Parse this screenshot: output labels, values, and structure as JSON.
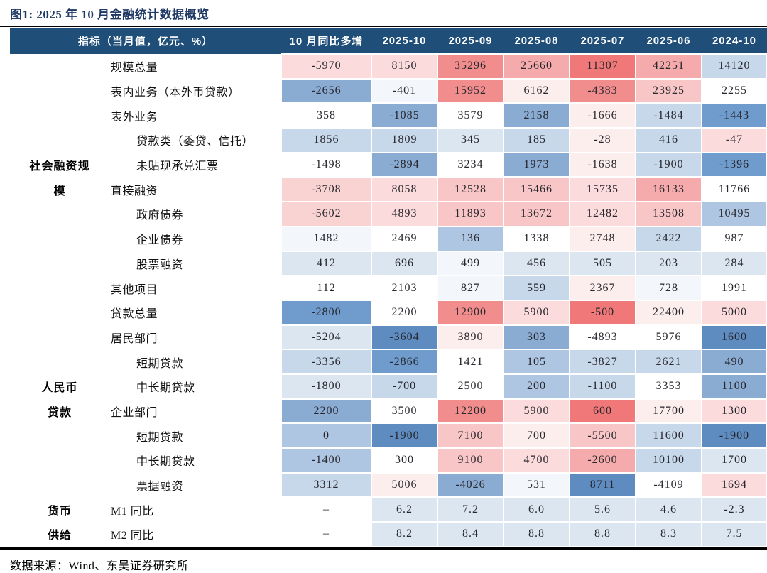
{
  "chart_data": {
    "type": "table",
    "title": "图1:  2025 年 10 月金融统计数据概览",
    "source": "数据来源：Wind、东吴证券研究所",
    "columns": [
      "指标（当月值，亿元、%）",
      "10 月同比多增",
      "2025-10",
      "2025-09",
      "2025-08",
      "2025-07",
      "2025-06",
      "2024-10"
    ],
    "rows": [
      {
        "cat": "",
        "indicator": "规模总量",
        "indent": 1,
        "cells": [
          [
            "-5970",
            "P1"
          ],
          [
            "8150",
            "P1"
          ],
          [
            "35296",
            "R2"
          ],
          [
            "25660",
            "R1"
          ],
          [
            "11307",
            "R3"
          ],
          [
            "42251",
            "R1"
          ],
          [
            "14120",
            "B1"
          ]
        ]
      },
      {
        "cat": "",
        "indicator": "表内业务（本外币贷款）",
        "indent": 1,
        "cells": [
          [
            "-2656",
            "B3"
          ],
          [
            "-401",
            "BW"
          ],
          [
            "15952",
            "R2"
          ],
          [
            "6162",
            "PW"
          ],
          [
            "-4383",
            "R2"
          ],
          [
            "23925",
            "P2"
          ],
          [
            "2255",
            "W"
          ]
        ]
      },
      {
        "cat": "",
        "indicator": "表外业务",
        "indent": 1,
        "cells": [
          [
            "358",
            "W"
          ],
          [
            "-1085",
            "B3"
          ],
          [
            "3579",
            "W"
          ],
          [
            "2158",
            "B3"
          ],
          [
            "-1666",
            "PW"
          ],
          [
            "-1484",
            "B1"
          ],
          [
            "-1443",
            "B4"
          ]
        ]
      },
      {
        "cat": "",
        "indicator": "贷款类（委贷、信托）",
        "indent": 2,
        "cells": [
          [
            "1856",
            "B1"
          ],
          [
            "1809",
            "B1"
          ],
          [
            "345",
            "B0"
          ],
          [
            "185",
            "B1"
          ],
          [
            "-28",
            "PW"
          ],
          [
            "416",
            "B1"
          ],
          [
            "-47",
            "P1"
          ]
        ]
      },
      {
        "cat": "社会融资规",
        "indicator": "未贴现承兑汇票",
        "indent": 2,
        "cells": [
          [
            "-1498",
            "W"
          ],
          [
            "-2894",
            "B3"
          ],
          [
            "3234",
            "W"
          ],
          [
            "1973",
            "B3"
          ],
          [
            "-1638",
            "PW"
          ],
          [
            "-1900",
            "B1"
          ],
          [
            "-1396",
            "B4"
          ]
        ]
      },
      {
        "cat": "模",
        "indicator": "直接融资",
        "indent": 1,
        "cells": [
          [
            "-3708",
            "P15"
          ],
          [
            "8058",
            "P1"
          ],
          [
            "12528",
            "P2"
          ],
          [
            "15466",
            "P2"
          ],
          [
            "15735",
            "P1"
          ],
          [
            "16133",
            "R1"
          ],
          [
            "11766",
            "W"
          ]
        ]
      },
      {
        "cat": "",
        "indicator": "政府债券",
        "indent": 2,
        "cells": [
          [
            "-5602",
            "P15"
          ],
          [
            "4893",
            "P1"
          ],
          [
            "11893",
            "P2"
          ],
          [
            "13672",
            "P2"
          ],
          [
            "12482",
            "P1"
          ],
          [
            "13508",
            "P2"
          ],
          [
            "10495",
            "B2"
          ]
        ]
      },
      {
        "cat": "",
        "indicator": "企业债券",
        "indent": 2,
        "cells": [
          [
            "1482",
            "BW"
          ],
          [
            "2469",
            "W"
          ],
          [
            "136",
            "B2"
          ],
          [
            "1338",
            "W"
          ],
          [
            "2748",
            "PW"
          ],
          [
            "2422",
            "B1"
          ],
          [
            "987",
            "W"
          ]
        ]
      },
      {
        "cat": "",
        "indicator": "股票融资",
        "indent": 2,
        "cells": [
          [
            "412",
            "B0"
          ],
          [
            "696",
            "B0"
          ],
          [
            "499",
            "BW"
          ],
          [
            "456",
            "B0"
          ],
          [
            "505",
            "B0"
          ],
          [
            "203",
            "B0"
          ],
          [
            "284",
            "B0"
          ]
        ]
      },
      {
        "cat": "",
        "indicator": "其他项目",
        "indent": 1,
        "cells": [
          [
            "112",
            "W"
          ],
          [
            "2103",
            "W"
          ],
          [
            "827",
            "BW"
          ],
          [
            "559",
            "B1"
          ],
          [
            "2367",
            "PW"
          ],
          [
            "728",
            "BW"
          ],
          [
            "1991",
            "W"
          ]
        ]
      },
      {
        "cat": "",
        "indicator": "贷款总量",
        "indent": 1,
        "cells": [
          [
            "-2800",
            "B4"
          ],
          [
            "2200",
            "W"
          ],
          [
            "12900",
            "R2"
          ],
          [
            "5900",
            "P1"
          ],
          [
            "-500",
            "R3"
          ],
          [
            "22400",
            "PW"
          ],
          [
            "5000",
            "P1"
          ]
        ]
      },
      {
        "cat": "",
        "indicator": "居民部门",
        "indent": 1,
        "cells": [
          [
            "-5204",
            "B0"
          ],
          [
            "-3604",
            "B5"
          ],
          [
            "3890",
            "PW"
          ],
          [
            "303",
            "B3"
          ],
          [
            "-4893",
            "W"
          ],
          [
            "5976",
            "W"
          ],
          [
            "1600",
            "B5"
          ]
        ]
      },
      {
        "cat": "",
        "indicator": "短期贷款",
        "indent": 2,
        "cells": [
          [
            "-3356",
            "B1"
          ],
          [
            "-2866",
            "B4"
          ],
          [
            "1421",
            "W"
          ],
          [
            "105",
            "B2"
          ],
          [
            "-3827",
            "B1"
          ],
          [
            "2621",
            "B1"
          ],
          [
            "490",
            "B3"
          ]
        ]
      },
      {
        "cat": "人民币",
        "indicator": "中长期贷款",
        "indent": 2,
        "cells": [
          [
            "-1800",
            "B0"
          ],
          [
            "-700",
            "B1"
          ],
          [
            "2500",
            "W"
          ],
          [
            "200",
            "B2"
          ],
          [
            "-1100",
            "B1"
          ],
          [
            "3353",
            "W"
          ],
          [
            "1100",
            "B3"
          ]
        ]
      },
      {
        "cat": "贷款",
        "indicator": "企业部门",
        "indent": 1,
        "cells": [
          [
            "2200",
            "B3"
          ],
          [
            "3500",
            "W"
          ],
          [
            "12200",
            "R2"
          ],
          [
            "5900",
            "P1"
          ],
          [
            "600",
            "R3"
          ],
          [
            "17700",
            "PW"
          ],
          [
            "1300",
            "P1"
          ]
        ]
      },
      {
        "cat": "",
        "indicator": "短期贷款",
        "indent": 2,
        "cells": [
          [
            "0",
            "B2"
          ],
          [
            "-1900",
            "B5"
          ],
          [
            "7100",
            "P2"
          ],
          [
            "700",
            "PW"
          ],
          [
            "-5500",
            "P2"
          ],
          [
            "11600",
            "B1"
          ],
          [
            "-1900",
            "B5"
          ]
        ]
      },
      {
        "cat": "",
        "indicator": "中长期贷款",
        "indent": 2,
        "cells": [
          [
            "-1400",
            "B2"
          ],
          [
            "300",
            "W"
          ],
          [
            "9100",
            "P2"
          ],
          [
            "4700",
            "P1"
          ],
          [
            "-2600",
            "R1"
          ],
          [
            "10100",
            "B1"
          ],
          [
            "1700",
            "B0"
          ]
        ]
      },
      {
        "cat": "",
        "indicator": "票据融资",
        "indent": 2,
        "cells": [
          [
            "3312",
            "B1"
          ],
          [
            "5006",
            "PW"
          ],
          [
            "-4026",
            "B3"
          ],
          [
            "531",
            "BW"
          ],
          [
            "8711",
            "B5"
          ],
          [
            "-4109",
            "W"
          ],
          [
            "1694",
            "P1"
          ]
        ]
      },
      {
        "cat": "货币",
        "indicator": "M1 同比",
        "indent": 1,
        "cells": [
          [
            "–",
            "W"
          ],
          [
            "6.2",
            "B0"
          ],
          [
            "7.2",
            "B0"
          ],
          [
            "6.0",
            "B0"
          ],
          [
            "5.6",
            "B0"
          ],
          [
            "4.6",
            "B0"
          ],
          [
            "-2.3",
            "B0"
          ]
        ]
      },
      {
        "cat": "供给",
        "indicator": "M2 同比",
        "indent": 1,
        "cells": [
          [
            "–",
            "W"
          ],
          [
            "8.2",
            "B0"
          ],
          [
            "8.4",
            "B0"
          ],
          [
            "8.8",
            "B0"
          ],
          [
            "8.8",
            "B0"
          ],
          [
            "8.3",
            "B0"
          ],
          [
            "7.5",
            "B0"
          ]
        ]
      }
    ]
  },
  "colors": {
    "header_bg": "#1f4e79",
    "title_color": "#1f3864",
    "palette": {
      "W": "#ffffff",
      "PW": "#fdeeee",
      "P1": "#fbdbdb",
      "P15": "#f9d2d2",
      "P2": "#f8c6c6",
      "R1": "#f5abab",
      "R2": "#f28d8d",
      "R3": "#f17878",
      "BW": "#f3f7fb",
      "B0": "#dce6f1",
      "B1": "#c8d8eb",
      "B2": "#aec6e1",
      "B3": "#8aabd2",
      "B4": "#6f9ccd",
      "B5": "#5e8cc1"
    }
  }
}
